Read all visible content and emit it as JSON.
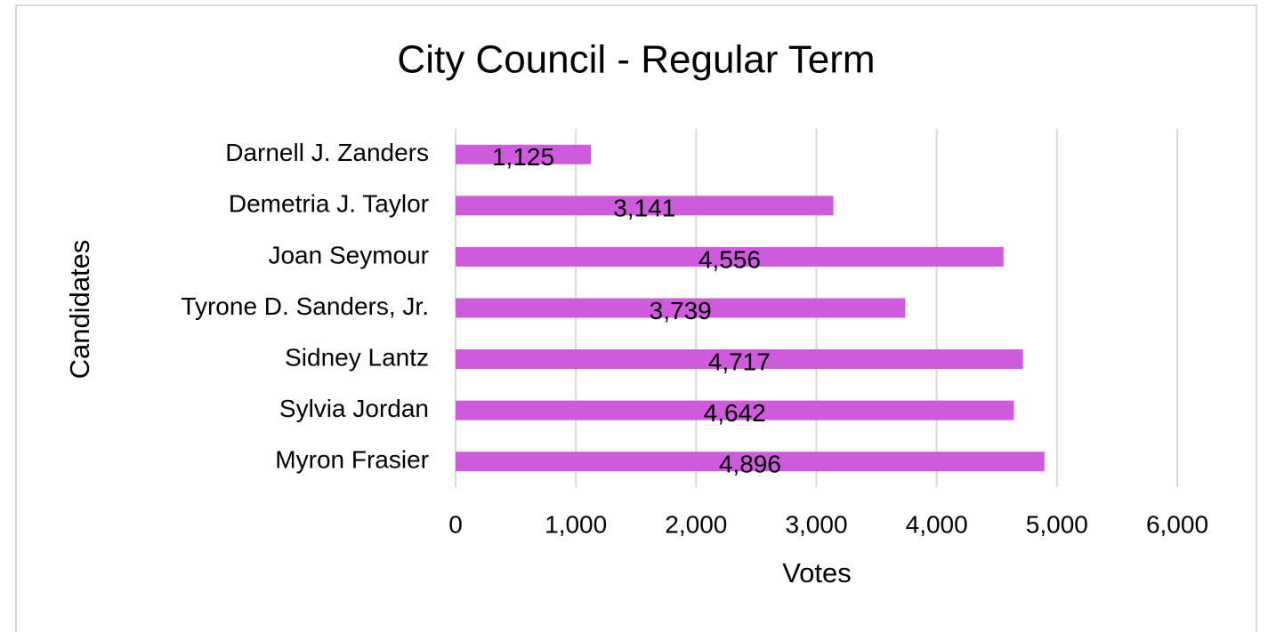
{
  "chart_data": {
    "type": "bar",
    "orientation": "horizontal",
    "title": "City Council - Regular Term",
    "categories": [
      "Darnell J. Zanders",
      "Demetria J. Taylor",
      "Joan Seymour",
      "Tyrone D. Sanders, Jr.",
      "Sidney Lantz",
      "Sylvia Jordan",
      "Myron Frasier"
    ],
    "values": [
      1125,
      3141,
      4556,
      3739,
      4717,
      4642,
      4896
    ],
    "value_labels": [
      "1,125",
      "3,141",
      "4,556",
      "3,739",
      "4,717",
      "4,642",
      "4,896"
    ],
    "color": "#cd5bdb",
    "xlabel": "Votes",
    "ylabel": "Candidates",
    "xlim": [
      0,
      6000
    ],
    "xticks": [
      0,
      {
        "value": 1000,
        "label": "1,000"
      },
      {
        "value": 2000,
        "label": "2,000"
      },
      {
        "value": 3000,
        "label": "3,000"
      },
      {
        "value": 4000,
        "label": "4,000"
      },
      {
        "value": 5000,
        "label": "5,000"
      },
      {
        "value": 6000,
        "label": "6,000"
      }
    ],
    "grid": true
  }
}
